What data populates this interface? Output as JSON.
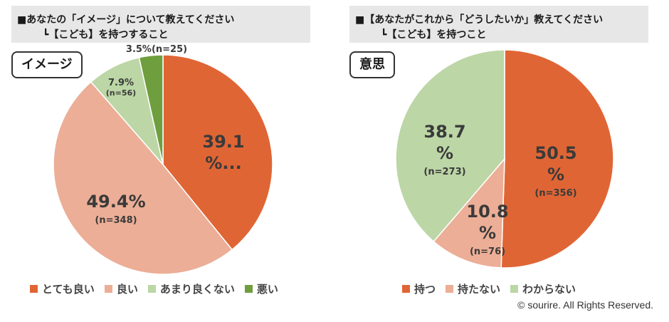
{
  "chart_data": [
    {
      "type": "pie",
      "title_line1": "■あなたの「イメージ」について教えてください",
      "title_line2": "┗【こども】を持つすること",
      "badge": "イメージ",
      "slices": [
        {
          "label": "とても良い",
          "value": 39.1,
          "pct_text": "39.1",
          "pct_text2": "%...",
          "n_text": "",
          "color": "#e06535"
        },
        {
          "label": "良い",
          "value": 49.4,
          "pct_text": "49.4%",
          "pct_text2": "",
          "n_text": "(n=348)",
          "color": "#ecae96"
        },
        {
          "label": "あまり良くない",
          "value": 7.9,
          "pct_text": "7.9%",
          "pct_text2": "",
          "n_text": "(n=56)",
          "color": "#bcd6a6"
        },
        {
          "label": "悪い",
          "value": 3.5,
          "pct_text": "3.5%",
          "pct_text2": "",
          "n_text": "(n=25)",
          "color": "#6f9e3e"
        }
      ]
    },
    {
      "type": "pie",
      "title_line1": "■【あなたがこれから「どうしたいか」教えてください",
      "title_line2": "┗【こども】を持つこと",
      "badge": "意思",
      "slices": [
        {
          "label": "持つ",
          "value": 50.5,
          "pct_text": "50.5",
          "pct_text2": "%",
          "n_text": "(n=356)",
          "color": "#e06535"
        },
        {
          "label": "持たない",
          "value": 10.8,
          "pct_text": "10.8",
          "pct_text2": "%",
          "n_text": "(n=76)",
          "color": "#ecae96"
        },
        {
          "label": "わからない",
          "value": 38.7,
          "pct_text": "38.7",
          "pct_text2": "%",
          "n_text": "(n=273)",
          "color": "#bcd6a6"
        }
      ]
    }
  ],
  "copyright": "© sourire. All Rights Reserved."
}
